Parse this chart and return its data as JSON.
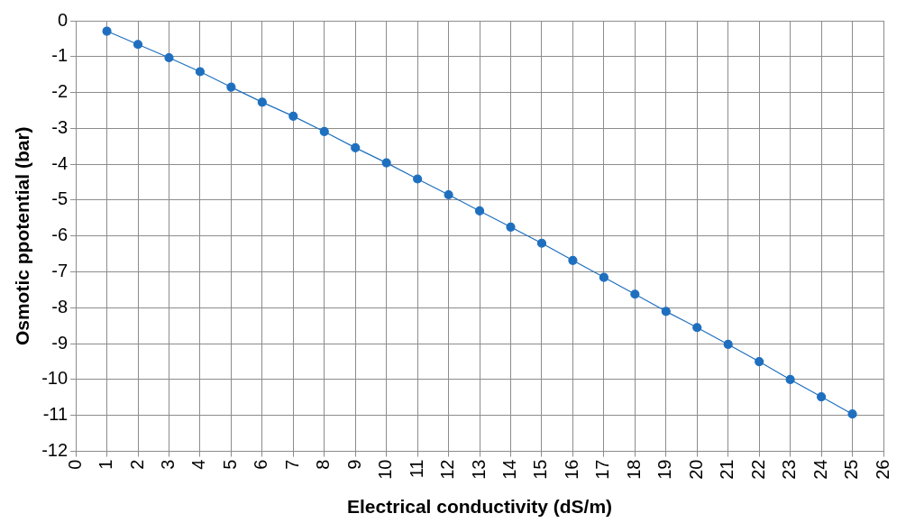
{
  "chart_data": {
    "type": "line",
    "xlabel": "Electrical conductivity (dS/m)",
    "ylabel": "Osmotic ppotential (bar)",
    "x": [
      1,
      2,
      3,
      4,
      5,
      6,
      7,
      8,
      9,
      10,
      11,
      12,
      13,
      14,
      15,
      16,
      17,
      18,
      19,
      20,
      21,
      22,
      23,
      24,
      25
    ],
    "series": [
      {
        "color": "#1f6fbf",
        "values": [
          -0.29,
          -0.66,
          -1.03,
          -1.42,
          -1.85,
          -2.27,
          -2.66,
          -3.09,
          -3.54,
          -3.96,
          -4.41,
          -4.85,
          -5.3,
          -5.75,
          -6.2,
          -6.68,
          -7.15,
          -7.62,
          -8.1,
          -8.55,
          -9.02,
          -9.5,
          -10.0,
          -10.48,
          -10.96
        ]
      }
    ],
    "xlim": [
      0,
      26
    ],
    "xticks": [
      0,
      1,
      2,
      3,
      4,
      5,
      6,
      7,
      8,
      9,
      10,
      11,
      12,
      13,
      14,
      15,
      16,
      17,
      18,
      19,
      20,
      21,
      22,
      23,
      24,
      25,
      26
    ],
    "ylim": [
      -12,
      0
    ],
    "yticks": [
      -12,
      -11,
      -10,
      -9,
      -8,
      -7,
      -6,
      -5,
      -4,
      -3,
      -2,
      -1,
      0
    ],
    "grid": true,
    "legend": false,
    "marker": "circle",
    "line_style": "solid"
  }
}
